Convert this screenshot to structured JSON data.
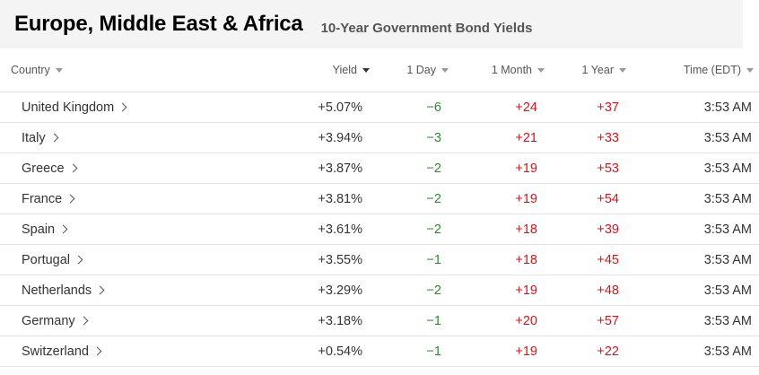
{
  "header": {
    "title": "Europe, Middle East & Africa",
    "subtitle": "10-Year Government Bond Yields"
  },
  "columns": {
    "country": "Country",
    "yield": "Yield",
    "day": "1 Day",
    "month": "1 Month",
    "year": "1 Year",
    "time": "Time (EDT)"
  },
  "colors": {
    "negative": "#2f8a2f",
    "positive": "#d0161d"
  },
  "rows": [
    {
      "country": "United Kingdom",
      "yield": "+5.07%",
      "day": "−6",
      "month": "+24",
      "year": "+37",
      "time": "3:53 AM"
    },
    {
      "country": "Italy",
      "yield": "+3.94%",
      "day": "−3",
      "month": "+21",
      "year": "+33",
      "time": "3:53 AM"
    },
    {
      "country": "Greece",
      "yield": "+3.87%",
      "day": "−2",
      "month": "+19",
      "year": "+53",
      "time": "3:53 AM"
    },
    {
      "country": "France",
      "yield": "+3.81%",
      "day": "−2",
      "month": "+19",
      "year": "+54",
      "time": "3:53 AM"
    },
    {
      "country": "Spain",
      "yield": "+3.61%",
      "day": "−2",
      "month": "+18",
      "year": "+39",
      "time": "3:53 AM"
    },
    {
      "country": "Portugal",
      "yield": "+3.55%",
      "day": "−1",
      "month": "+18",
      "year": "+45",
      "time": "3:53 AM"
    },
    {
      "country": "Netherlands",
      "yield": "+3.29%",
      "day": "−2",
      "month": "+19",
      "year": "+48",
      "time": "3:53 AM"
    },
    {
      "country": "Germany",
      "yield": "+3.18%",
      "day": "−1",
      "month": "+20",
      "year": "+57",
      "time": "3:53 AM"
    },
    {
      "country": "Switzerland",
      "yield": "+0.54%",
      "day": "−1",
      "month": "+19",
      "year": "+22",
      "time": "3:53 AM"
    }
  ]
}
